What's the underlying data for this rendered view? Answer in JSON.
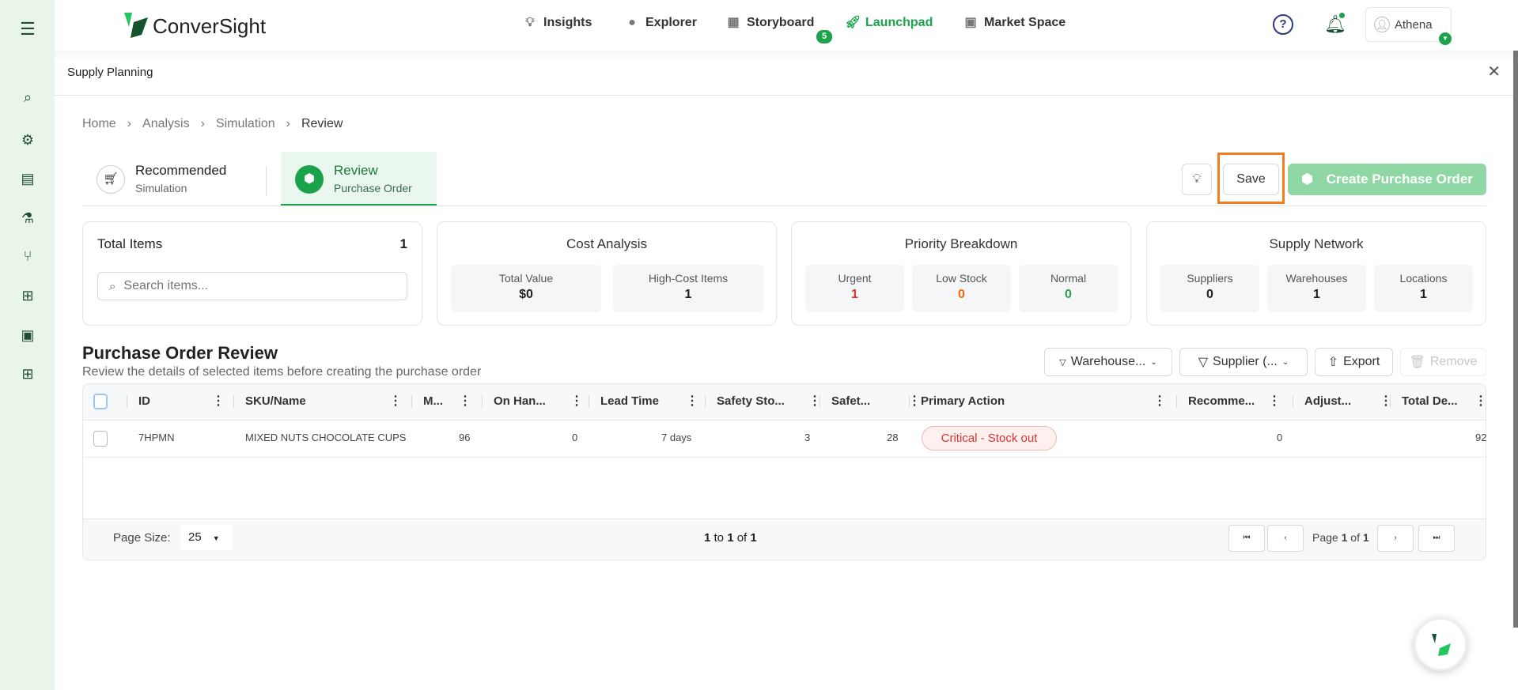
{
  "app": {
    "brand": "ConverSight",
    "page_title": "Supply Planning",
    "user": "Athena",
    "accent": "#1aa34a"
  },
  "nav": [
    {
      "label": "Insights",
      "icon": "lightbulb-icon"
    },
    {
      "label": "Explorer",
      "icon": "explorer-icon"
    },
    {
      "label": "Storyboard",
      "icon": "storyboard-icon",
      "badge": "5"
    },
    {
      "label": "Launchpad",
      "icon": "rocket-icon",
      "active": true
    },
    {
      "label": "Market Space",
      "icon": "store-icon"
    }
  ],
  "breadcrumb": [
    "Home",
    "Analysis",
    "Simulation",
    "Review"
  ],
  "steps": [
    {
      "title": "Recommended",
      "sub": "Simulation"
    },
    {
      "title": "Review",
      "sub": "Purchase Order"
    }
  ],
  "actions": {
    "save": "Save",
    "create": "Create Purchase Order"
  },
  "total_items": {
    "label": "Total Items",
    "value": "1",
    "search_placeholder": "Search items..."
  },
  "cost": {
    "title": "Cost Analysis",
    "stats": [
      {
        "label": "Total Value",
        "value": "$0"
      },
      {
        "label": "High-Cost Items",
        "value": "1"
      }
    ]
  },
  "priority": {
    "title": "Priority Breakdown",
    "stats": [
      {
        "label": "Urgent",
        "value": "1",
        "color": "#e03131"
      },
      {
        "label": "Low Stock",
        "value": "0",
        "color": "#f76707"
      },
      {
        "label": "Normal",
        "value": "0",
        "color": "#2f9e44"
      }
    ]
  },
  "network": {
    "title": "Supply Network",
    "stats": [
      {
        "label": "Suppliers",
        "value": "0"
      },
      {
        "label": "Warehouses",
        "value": "1"
      },
      {
        "label": "Locations",
        "value": "1"
      }
    ]
  },
  "review": {
    "title": "Purchase Order Review",
    "subtitle": "Review the details of selected items before creating the purchase order",
    "filters": {
      "warehouse": "Warehouse...",
      "supplier": "Supplier (...",
      "export": "Export",
      "remove": "Remove"
    }
  },
  "table": {
    "columns": [
      "ID",
      "SKU/Name",
      "M...",
      "On Han...",
      "Lead Time",
      "Safety Sto...",
      "Safet...",
      "Primary Action",
      "Recomme...",
      "Adjust...",
      "Total De..."
    ],
    "rows": [
      {
        "id": "7HPMN",
        "sku": "MIXED NUTS CHOCOLATE CUPS",
        "m": "96",
        "on_hand": "0",
        "lead_time": "7 days",
        "safety_stock": "3",
        "safety": "28",
        "action": "Critical - Stock out",
        "recommended": "0",
        "adjusted": "",
        "total": "92"
      }
    ]
  },
  "pagination": {
    "page_size_label": "Page Size:",
    "page_size": "25",
    "range_from": "1",
    "range_to": "1",
    "total": "1",
    "page": "1",
    "pages": "1",
    "to": "to",
    "of": "of",
    "page_word": "Page"
  }
}
